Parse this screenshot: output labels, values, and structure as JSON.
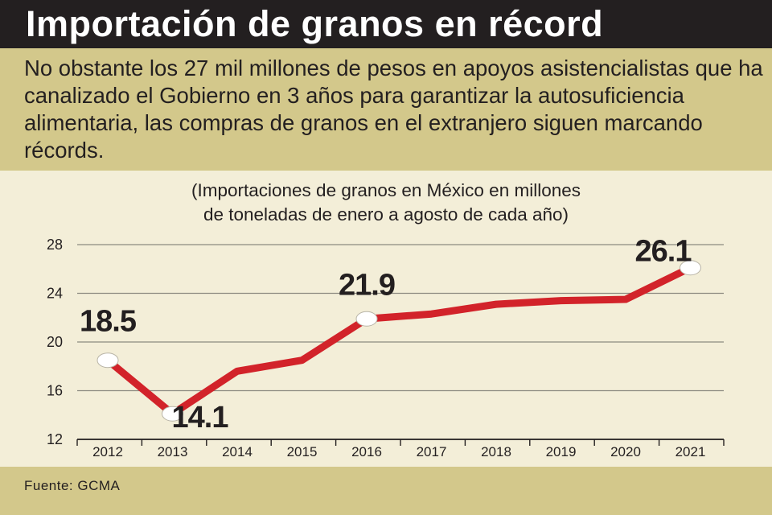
{
  "header": {
    "title": "Importación de granos en récord"
  },
  "deck": {
    "text": "No obstante los 27 mil millones de pesos en apoyos asistencialistas que ha canalizado el Gobierno en 3 años para garantizar la autosuficiencia alimentaria, las compras de granos en el extranjero siguen marcando récords."
  },
  "chart_data": {
    "type": "line",
    "subtitle_lines": [
      "(Importaciones de granos en México en millones",
      "de toneladas de enero a agosto de cada año)"
    ],
    "categories": [
      "2012",
      "2013",
      "2014",
      "2015",
      "2016",
      "2017",
      "2018",
      "2019",
      "2020",
      "2021"
    ],
    "values": [
      18.5,
      14.1,
      17.6,
      18.5,
      21.9,
      22.3,
      23.1,
      23.4,
      23.5,
      26.1
    ],
    "ylim": [
      12,
      28
    ],
    "yticks": [
      12,
      16,
      20,
      24,
      28
    ],
    "labeled_points": [
      {
        "index": 0,
        "label": "18.5"
      },
      {
        "index": 1,
        "label": "14.1"
      },
      {
        "index": 4,
        "label": "21.9"
      },
      {
        "index": 9,
        "label": "26.1"
      }
    ],
    "grid": true,
    "line_color": "#d2232a",
    "marker_color": "#ffffff"
  },
  "footer": {
    "source": "Fuente: GCMA"
  }
}
